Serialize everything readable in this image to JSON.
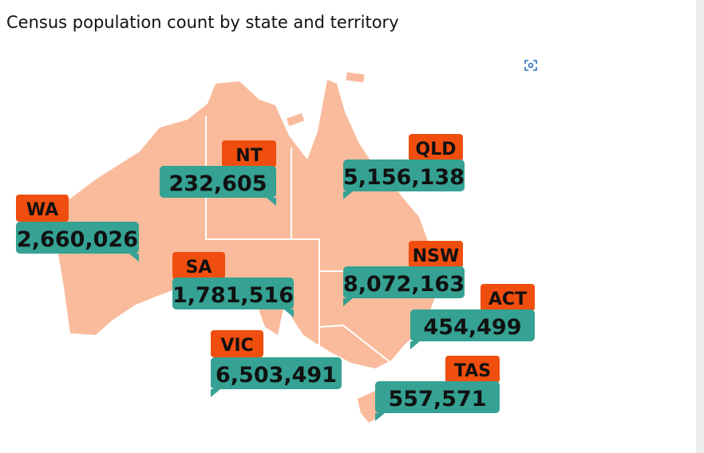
{
  "title": "Census population count by state and territory",
  "regions": [
    {
      "code": "NT",
      "population": "232,605"
    },
    {
      "code": "QLD",
      "population": "5,156,138"
    },
    {
      "code": "WA",
      "population": "2,660,026"
    },
    {
      "code": "SA",
      "population": "1,781,516"
    },
    {
      "code": "NSW",
      "population": "8,072,163"
    },
    {
      "code": "ACT",
      "population": "454,499"
    },
    {
      "code": "VIC",
      "population": "6,503,491"
    },
    {
      "code": "TAS",
      "population": "557,571"
    }
  ]
}
